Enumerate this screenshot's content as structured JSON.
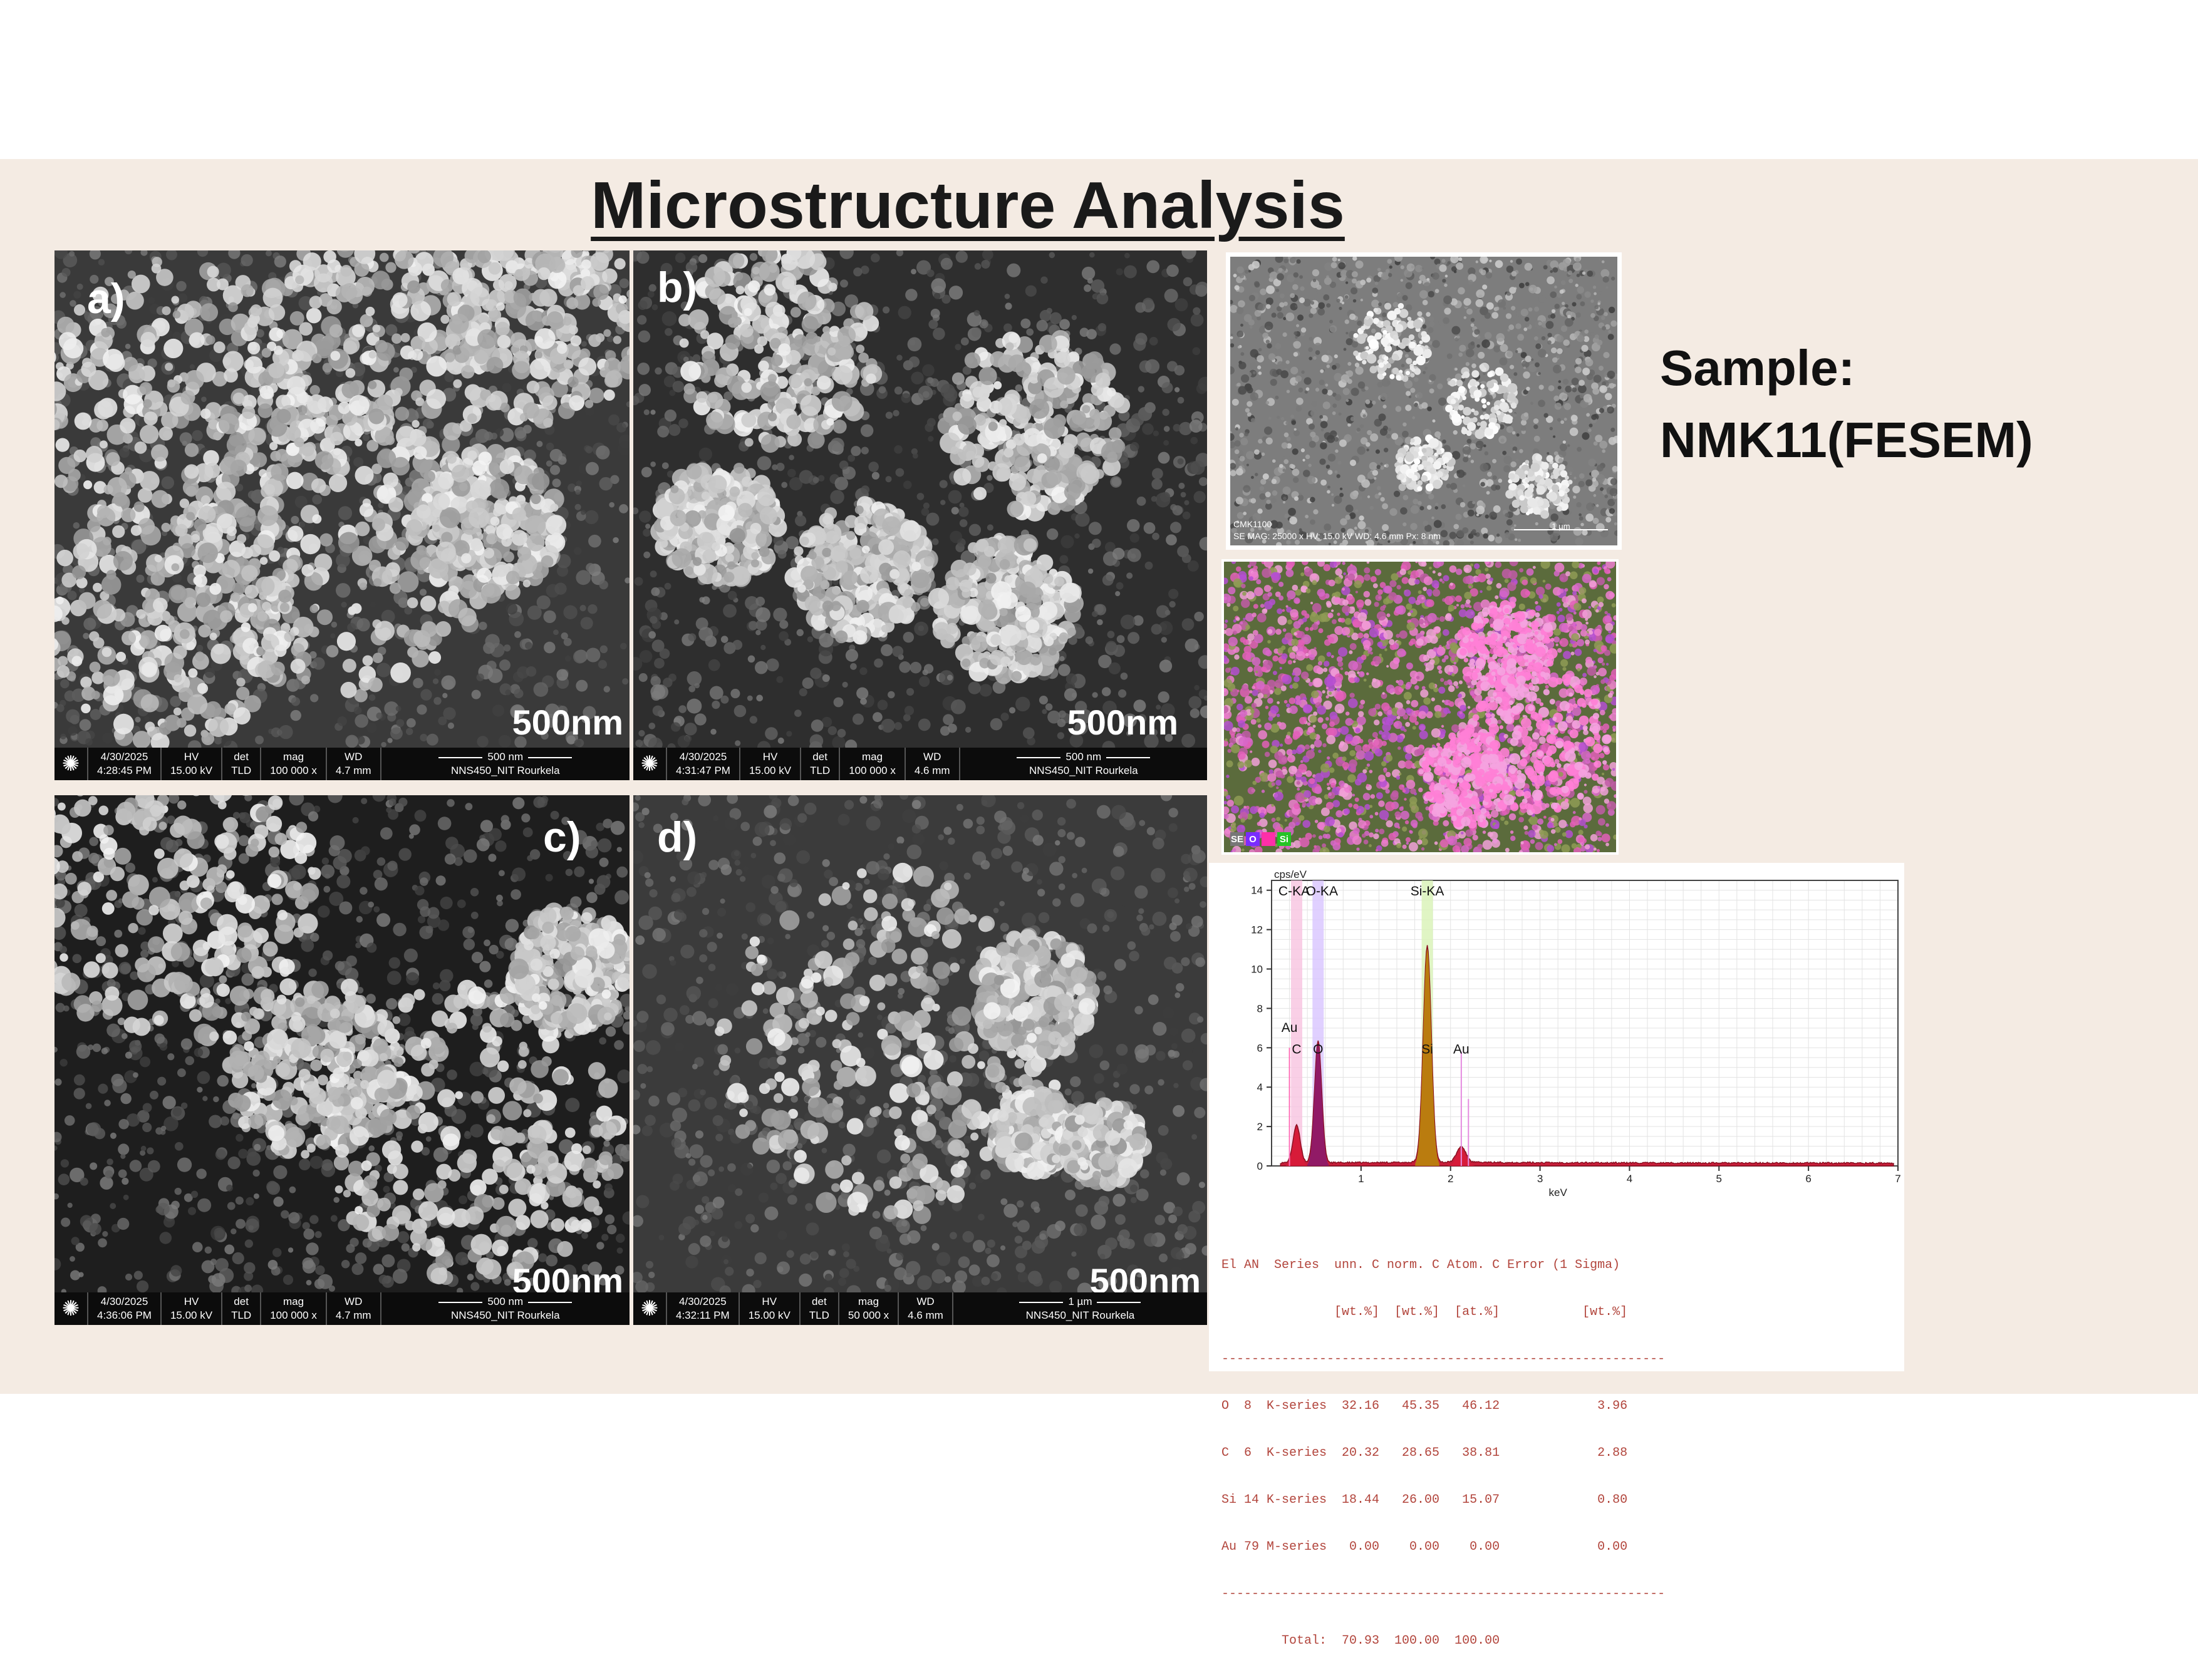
{
  "title": "Microstructure Analysis",
  "sample": {
    "line1": "Sample:",
    "line2": "NMK11(FESEM)"
  },
  "panels": [
    {
      "label": "a)",
      "scale": "500nm",
      "databar": {
        "date": "4/30/2025",
        "time": "4:28:45 PM",
        "hv_h": "HV",
        "hv": "15.00 kV",
        "det_h": "det",
        "det": "TLD",
        "mag_h": "mag",
        "mag": "100 000 x",
        "wd_h": "WD",
        "wd": "4.7 mm",
        "bar": "500 nm",
        "lab": "NNS450_NIT Rourkela"
      }
    },
    {
      "label": "b)",
      "scale": "500nm",
      "databar": {
        "date": "4/30/2025",
        "time": "4:31:47 PM",
        "hv_h": "HV",
        "hv": "15.00 kV",
        "det_h": "det",
        "det": "TLD",
        "mag_h": "mag",
        "mag": "100 000 x",
        "wd_h": "WD",
        "wd": "4.6 mm",
        "bar": "500 nm",
        "lab": "NNS450_NIT Rourkela"
      }
    },
    {
      "label": "c)",
      "scale": "500nm",
      "databar": {
        "date": "4/30/2025",
        "time": "4:36:06 PM",
        "hv_h": "HV",
        "hv": "15.00 kV",
        "det_h": "det",
        "det": "TLD",
        "mag_h": "mag",
        "mag": "100 000 x",
        "wd_h": "WD",
        "wd": "4.7 mm",
        "bar": "500 nm",
        "lab": "NNS450_NIT Rourkela"
      }
    },
    {
      "label": "d)",
      "scale": "500nm",
      "databar": {
        "date": "4/30/2025",
        "time": "4:32:11 PM",
        "hv_h": "HV",
        "hv": "15.00 kV",
        "det_h": "det",
        "det": "TLD",
        "mag_h": "mag",
        "mag": "50 000 x",
        "wd_h": "WD",
        "wd": "4.6 mm",
        "bar": "1 µm",
        "lab": "NNS450_NIT Rourkela"
      }
    }
  ],
  "edx_sem": {
    "caption1": "CMK1100",
    "caption2": "SE MAG: 25000 x HV: 15.0 kV WD: 4.6 mm  Px: 8 nm",
    "bar": "1 µm"
  },
  "edx_map": {
    "legend": [
      "SE",
      "O",
      "",
      "Si"
    ],
    "legend_colors": [
      "#777777",
      "#7a2cff",
      "#ff2fa8",
      "#25c425"
    ]
  },
  "chart_data": {
    "type": "line",
    "xlabel": "keV",
    "ylabel": "cps/eV",
    "xlim": [
      0,
      7
    ],
    "ylim": [
      0,
      14.5
    ],
    "xticks": [
      1,
      2,
      3,
      4,
      5,
      6,
      7
    ],
    "yticks": [
      0,
      2,
      4,
      6,
      8,
      10,
      12,
      14
    ],
    "grid": true,
    "line_labels": [
      {
        "text": "C-KA",
        "x": 0.28
      },
      {
        "text": "O-KA",
        "x": 0.52
      },
      {
        "text": "Si-KA",
        "x": 1.74
      }
    ],
    "peak_labels": [
      {
        "text": "Au",
        "x": 0.2,
        "y": 6.8
      },
      {
        "text": "C",
        "x": 0.28,
        "y": 5.7
      },
      {
        "text": "O",
        "x": 0.52,
        "y": 5.7
      },
      {
        "text": "Si",
        "x": 1.74,
        "y": 5.7
      },
      {
        "text": "Au",
        "x": 2.12,
        "y": 5.7
      }
    ],
    "peaks": [
      {
        "x": 0.28,
        "y": 1.9,
        "w": 0.04,
        "color": "#d81b3a"
      },
      {
        "x": 0.52,
        "y": 6.2,
        "w": 0.04,
        "color": "#8b1a6b"
      },
      {
        "x": 1.74,
        "y": 11.0,
        "w": 0.045,
        "color": "#b8860b"
      },
      {
        "x": 2.12,
        "y": 0.8,
        "w": 0.05,
        "color": "#d81b3a"
      }
    ],
    "marker_lines": [
      {
        "x": 0.2,
        "y": 6.0,
        "color": "#ff6fb8"
      },
      {
        "x": 2.12,
        "y": 5.8,
        "color": "#e58be0"
      },
      {
        "x": 2.2,
        "y": 3.4,
        "color": "#e58be0"
      }
    ]
  },
  "edx_table": {
    "header1": "El AN  Series  unn. C norm. C Atom. C Error (1 Sigma)",
    "header2": "               [wt.%]  [wt.%]  [at.%]           [wt.%]",
    "rule": "-----------------------------------------------------------",
    "rows": [
      "O  8  K-series  32.16   45.35   46.12             3.96",
      "C  6  K-series  20.32   28.65   38.81             2.88",
      "Si 14 K-series  18.44   26.00   15.07             0.80",
      "Au 79 M-series   0.00    0.00    0.00             0.00"
    ],
    "total": "        Total:  70.93  100.00  100.00"
  }
}
